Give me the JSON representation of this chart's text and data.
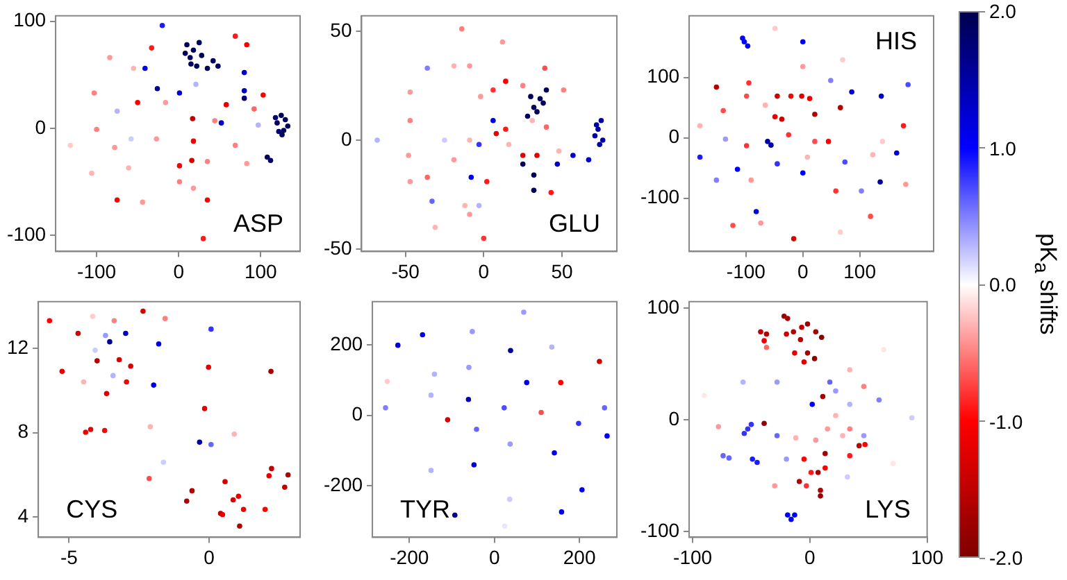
{
  "chart_data": [
    {
      "type": "scatter",
      "title": "ASP",
      "marker": "circle",
      "xlim": [
        -150,
        148
      ],
      "ylim": [
        -115,
        105
      ],
      "xticks": [
        -100,
        0,
        100
      ],
      "yticks": [
        -100,
        0,
        100
      ],
      "series": [
        {
          "x": [
            120,
            125,
            130,
            128,
            122,
            133,
            126,
            118,
            10,
            18,
            25,
            14,
            28,
            15,
            22,
            35,
            42,
            48,
            8,
            80,
            80,
            108,
            112,
            80,
            52,
            -41,
            -20,
            1,
            -26,
            -75,
            21,
            -58,
            97,
            17,
            35,
            30,
            83,
            69,
            -33,
            -75,
            58,
            103,
            -50,
            18,
            1,
            16,
            -84,
            -103,
            -100,
            -132,
            -106,
            -78,
            -44,
            18,
            69,
            83,
            92,
            44,
            -16,
            -27,
            -61,
            35,
            1,
            -55
          ],
          "values": [
            5,
            12,
            8,
            -2,
            -3,
            2,
            -6,
            10,
            78,
            73,
            80,
            66,
            68,
            60,
            58,
            56,
            63,
            58,
            70,
            52,
            35,
            -27,
            -30,
            28,
            5,
            56,
            96,
            33,
            37,
            16,
            41,
            -10,
            3,
            9,
            -67,
            -103,
            78,
            86,
            75,
            -67,
            22,
            31,
            24,
            -12,
            -35,
            -30,
            66,
            33,
            -1,
            -16,
            -42,
            -18,
            -69,
            -56,
            -16,
            -33,
            18,
            7,
            24,
            -10,
            -37,
            -31,
            -50,
            56
          ],
          "colors": [
            "#00005f",
            "#00005f",
            "#00005f",
            "#00005f",
            "#000071",
            "#00005f",
            "#00005f",
            "#000071",
            "#00005f",
            "#00005f",
            "#00005f",
            "#00005f",
            "#00005f",
            "#00005f",
            "#00005f",
            "#00005f",
            "#00005f",
            "#00005f",
            "#00005f",
            "#0000ca",
            "#0000b8",
            "#00005f",
            "#00005f",
            "#000071",
            "#0000ca",
            "#0000ff",
            "#1a1aff",
            "#0000db",
            "#000094",
            "#b3b3ff",
            "#b3b3ff",
            "#ccccff",
            "#b3b3ff",
            "#c00000",
            "#ff0000",
            "#ff1a1a",
            "#ff0000",
            "#ff1a1a",
            "#ff1a1a",
            "#ff0000",
            "#e60000",
            "#ff0000",
            "#ff0000",
            "#f20000",
            "#ff0000",
            "#d90000",
            "#ff9999",
            "#ff8080",
            "#ff8080",
            "#ffcccc",
            "#ffb3b3",
            "#ff9999",
            "#ff9999",
            "#ff9999",
            "#ff8080",
            "#ff9999",
            "#ff6666",
            "#ff8080",
            "#ff9999",
            "#ff9999",
            "#ffb3b3",
            "#ff8080",
            "#ff8080",
            "#ffb3b3"
          ]
        }
      ]
    },
    {
      "type": "scatter",
      "title": "GLU",
      "marker": "circle",
      "xlim": [
        -78,
        85
      ],
      "ylim": [
        -51,
        57
      ],
      "xticks": [
        -50,
        0,
        50
      ],
      "yticks": [
        -50,
        0,
        50
      ],
      "series": [
        {
          "x": [
            73,
            75,
            71,
            76,
            72,
            74,
            28,
            32,
            36,
            40,
            30,
            34,
            38,
            25,
            32,
            32,
            47,
            57,
            67,
            -8,
            -3,
            6,
            -33,
            -36,
            -3,
            -68,
            -25,
            25,
            34,
            8,
            14,
            14,
            2,
            0,
            43,
            39,
            6,
            -14,
            12,
            -47,
            -47,
            -47,
            -36,
            -19,
            -9,
            -2,
            -19,
            -9,
            -9,
            -12,
            -31,
            48,
            25,
            51,
            40,
            -48,
            16,
            31
          ],
          "values": [
            5,
            9,
            2,
            0,
            7,
            -2,
            11,
            15,
            19,
            23,
            20,
            13,
            17,
            -11,
            -23,
            -16,
            -11,
            -7,
            -9,
            -17,
            -2,
            9,
            -28,
            33,
            -30,
            0,
            0,
            -7,
            -7,
            3,
            5,
            27,
            -19,
            -45,
            -24,
            33,
            23,
            51,
            45,
            22,
            9,
            -19,
            -17,
            34,
            34,
            20,
            -9,
            0,
            -34,
            -30,
            -40,
            -5,
            25,
            23,
            6,
            -7,
            -2,
            9
          ],
          "colors": [
            "#0000a6",
            "#0000a6",
            "#0000a6",
            "#0000a6",
            "#0000a6",
            "#0000a6",
            "#00005f",
            "#00005f",
            "#00005f",
            "#00005f",
            "#00005f",
            "#00005f",
            "#00005f",
            "#00005f",
            "#00005f",
            "#00005f",
            "#0000ca",
            "#0000ca",
            "#0000ca",
            "#0000ff",
            "#3333ff",
            "#0000db",
            "#6666ff",
            "#8080ff",
            "#b3b3ff",
            "#b3b3ff",
            "#ccccff",
            "#e60000",
            "#e60000",
            "#f20000",
            "#ff1a1a",
            "#ff0000",
            "#ff1a1a",
            "#ff3333",
            "#ff1a1a",
            "#ff4d4d",
            "#ff3333",
            "#ff8080",
            "#ff9999",
            "#ff9999",
            "#ff8080",
            "#ff9999",
            "#ff6666",
            "#ffb3b3",
            "#ff9999",
            "#ff9999",
            "#ff9999",
            "#ffb3b3",
            "#ff9999",
            "#ffb3b3",
            "#ffb3b3",
            "#ffb3b3",
            "#ff8080",
            "#ff8080",
            "#ff6666",
            "#ff9999",
            "#ffb3b3",
            "#ffb3b3"
          ]
        }
      ]
    },
    {
      "type": "scatter",
      "title": "HIS",
      "marker": "circle",
      "xlim": [
        -200,
        230
      ],
      "ylim": [
        -188,
        202
      ],
      "xticks": [
        -100,
        0,
        100
      ],
      "yticks": [
        -100,
        0,
        100
      ],
      "clim": [
        -2,
        2
      ],
      "cticks": [
        {
          "value": 2,
          "label": "2.0"
        },
        {
          "value": 1,
          "label": "1.0"
        },
        {
          "value": 0,
          "label": "0.0"
        },
        {
          "value": -1,
          "label": "-1.0"
        },
        {
          "value": -2,
          "label": "-2.0"
        }
      ],
      "clabel": "pK$_{a}$ shifts",
      "series": [
        {
          "x": [
            -103,
            -97,
            -106,
            0,
            86,
            138,
            185,
            -62,
            -56,
            -181,
            -115,
            -82,
            -45,
            74,
            165,
            136,
            -152,
            -136,
            0,
            103,
            49,
            -152,
            -45,
            21,
            66,
            -16,
            -37,
            -49,
            -2,
            12,
            45,
            -21,
            -99,
            -95,
            -140,
            58,
            119,
            -123,
            177,
            -25,
            21,
            -99,
            -181,
            0,
            -49,
            -91,
            181,
            123,
            -74,
            70,
            8,
            140,
            66,
            -66
          ],
          "values": [
            159,
            152,
            165,
            159,
            76,
            69,
            88,
            -6,
            -12,
            -32,
            -52,
            -122,
            -43,
            -40,
            -25,
            -73,
            -70,
            -2,
            -58,
            -88,
            95,
            84,
            69,
            39,
            50,
            -167,
            31,
            35,
            69,
            65,
            -6,
            69,
            -13,
            91,
            45,
            -88,
            -130,
            -145,
            20,
            5,
            -6,
            69,
            20,
            118,
            181,
            -70,
            -77,
            -28,
            -141,
            129,
            -32,
            -6,
            -156,
            54
          ],
          "cvalues": [
            1.0,
            1.0,
            1.0,
            1.1,
            1.2,
            1.3,
            0.7,
            1.5,
            1.5,
            0.9,
            1.0,
            1.1,
            0.8,
            0.7,
            1.2,
            1.6,
            0.5,
            0.4,
            1.0,
            0.5,
            0.5,
            -1.6,
            -1.4,
            -1.6,
            -1.6,
            -1.3,
            -1.4,
            -1.2,
            -1.2,
            -1.1,
            -1.0,
            -1.0,
            -0.8,
            -0.8,
            -0.7,
            -0.8,
            -0.7,
            -0.7,
            -0.9,
            -0.8,
            -0.7,
            -0.7,
            -0.3,
            -0.4,
            -0.2,
            -0.4,
            -0.4,
            -0.3,
            -0.4,
            -0.2,
            -0.3,
            -0.2,
            -0.2,
            -0.3
          ]
        }
      ]
    },
    {
      "type": "scatter",
      "title": "CYS",
      "marker": "circle",
      "xlim": [
        -6.1,
        3.25
      ],
      "ylim": [
        3.05,
        14.2
      ],
      "xticks": [
        -5,
        0
      ],
      "yticks": [
        4,
        8,
        12
      ],
      "series": [
        {
          "x": [
            -5.7,
            -2.36,
            -4.16,
            -3.39,
            -1.57,
            0.07,
            -4.68,
            -3.7,
            -2.98,
            -3.55,
            -1.8,
            -4.07,
            -4.0,
            -3.21,
            -2.8,
            -5.25,
            -0.02,
            2.21,
            -3.43,
            -4.48,
            -2.95,
            -1.98,
            -3.66,
            -0.16,
            -4.23,
            -4.41,
            -3.73,
            -2.1,
            0.9,
            -0.34,
            0.07,
            -1.63,
            -2.14,
            2.23,
            2.14,
            2.82,
            2.7,
            0.57,
            -0.61,
            -0.8,
            0.86,
            1.05,
            1.23,
            2.0,
            0.41,
            0.48,
            1.09
          ],
          "values": [
            13.3,
            13.75,
            13.5,
            13.3,
            13.4,
            12.9,
            12.7,
            12.6,
            12.7,
            12.3,
            12.2,
            11.9,
            11.4,
            11.45,
            11.15,
            10.9,
            11.1,
            10.9,
            10.7,
            10.4,
            10.4,
            10.25,
            9.85,
            9.14,
            8.15,
            8.02,
            8.1,
            8.28,
            7.93,
            7.55,
            7.44,
            6.6,
            5.83,
            6.3,
            5.96,
            6.0,
            5.42,
            5.68,
            5.25,
            4.76,
            4.82,
            4.99,
            4.37,
            4.37,
            4.18,
            4.12,
            3.58
          ],
          "colors": [
            "#ff0000",
            "#d90000",
            "#ffcccc",
            "#ff8080",
            "#ff8080",
            "#3333ff",
            "#d90000",
            "#9999ff",
            "#0000ca",
            "#000094",
            "#0000ed",
            "#ccccff",
            "#b30000",
            "#d90000",
            "#d90000",
            "#e60000",
            "#e60000",
            "#a60000",
            "#b3b3ff",
            "#ffb3b3",
            "#ff0000",
            "#0000db",
            "#d90000",
            "#e60000",
            "#e60000",
            "#e60000",
            "#ff0000",
            "#ffb3b3",
            "#ffb3b3",
            "#0000a6",
            "#6666ff",
            "#ccccff",
            "#ff4d4d",
            "#c00000",
            "#e60000",
            "#b30000",
            "#c00000",
            "#d90000",
            "#b30000",
            "#b30000",
            "#d90000",
            "#e60000",
            "#f20000",
            "#ff0000",
            "#c00000",
            "#e60000",
            "#b30000"
          ]
        }
      ]
    },
    {
      "type": "scatter",
      "title": "TYR",
      "marker": "circle",
      "xlim": [
        -287,
        288
      ],
      "ylim": [
        -347,
        323
      ],
      "xticks": [
        -200,
        0,
        200
      ],
      "yticks": [
        -200,
        0,
        200
      ],
      "series": [
        {
          "x": [
            69,
            -169,
            -227,
            -52,
            38,
            135,
            247,
            -60,
            -141,
            -252,
            76,
            156,
            -149,
            -61,
            -256,
            23,
            110,
            -110,
            259,
            198,
            -42,
            265,
            37,
            141,
            -48,
            -149,
            206,
            36,
            158,
            -93,
            24
          ],
          "values": [
            293,
            229,
            199,
            238,
            184,
            194,
            153,
            136,
            117,
            96,
            93,
            93,
            57,
            45,
            21,
            21,
            8,
            -13,
            21,
            -23,
            -40,
            -59,
            -82,
            -107,
            -141,
            -157,
            -212,
            -239,
            -275,
            -284,
            -315
          ],
          "colors": [
            "#9999ff",
            "#0000ed",
            "#0000db",
            "#9999ff",
            "#000094",
            "#b3b3ff",
            "#cc0000",
            "#9999ff",
            "#b3b3ff",
            "#ffcccc",
            "#0000ed",
            "#ff0000",
            "#b3b3ff",
            "#0000b8",
            "#8080ff",
            "#4d4dff",
            "#ff4d4d",
            "#d90000",
            "#6666ff",
            "#3333ff",
            "#6666ff",
            "#0000ff",
            "#9999ff",
            "#0000ed",
            "#0000db",
            "#b3b3ff",
            "#0000ed",
            "#ccccff",
            "#0000ed",
            "#000094",
            "#e6e6ff"
          ]
        }
      ]
    },
    {
      "type": "scatter",
      "title": "LYS",
      "marker": "circle",
      "xlim": [
        -103,
        100
      ],
      "ylim": [
        -105,
        106
      ],
      "xticks": [
        -100,
        0,
        100
      ],
      "yticks": [
        -100,
        0,
        100
      ],
      "series": [
        {
          "x": [
            -22,
            -19,
            -42,
            -37,
            -20,
            -14,
            -7,
            -2,
            5,
            10,
            -8,
            -2,
            4,
            -5,
            -13,
            -39,
            -37,
            11,
            -39,
            13,
            7,
            -9,
            9,
            9,
            42,
            -5,
            1,
            13,
            47,
            34,
            -3,
            -53,
            -50,
            -56,
            -28,
            -74,
            -69,
            -49,
            -45,
            -16,
            -19,
            -13,
            2,
            17,
            -57,
            -28,
            -20,
            59,
            34,
            87,
            32,
            22,
            46,
            -78,
            46,
            34,
            63,
            15,
            28,
            5,
            -12,
            -30,
            71,
            -90,
            34,
            22
          ],
          "values": [
            93,
            91,
            79,
            77,
            77,
            79,
            83,
            86,
            79,
            74,
            72,
            60,
            55,
            52,
            60,
            71,
            65,
            21,
            -3,
            -30,
            -47,
            -55,
            -63,
            -68,
            -23,
            -35,
            -47,
            -43,
            -22,
            -32,
            -59,
            -8,
            -4,
            -12,
            -14,
            -32,
            -34,
            -35,
            -38,
            -89,
            -85,
            -85,
            14,
            34,
            34,
            34,
            -35,
            18,
            14,
            2,
            -51,
            26,
            -14,
            -6,
            30,
            45,
            63,
            -8,
            -14,
            -18,
            -16,
            -59,
            -39,
            22,
            -8,
            4
          ],
          "colors": [
            "#990000",
            "#a60000",
            "#c00000",
            "#b30000",
            "#cc0000",
            "#b30000",
            "#c00000",
            "#990000",
            "#a60000",
            "#8d0000",
            "#b30000",
            "#a60000",
            "#8d0000",
            "#d90000",
            "#e60000",
            "#f20000",
            "#ff6666",
            "#a60000",
            "#990000",
            "#a60000",
            "#a60000",
            "#b30000",
            "#b30000",
            "#990000",
            "#c00000",
            "#ff0000",
            "#ff1a1a",
            "#ff0000",
            "#ff0000",
            "#ff1a1a",
            "#ff3333",
            "#3333ff",
            "#3333ff",
            "#3333ff",
            "#6666ff",
            "#6666ff",
            "#6666ff",
            "#1a1aff",
            "#1a1aff",
            "#0000ff",
            "#0000ff",
            "#0000ff",
            "#0000ff",
            "#6666ff",
            "#b3b3ff",
            "#9999ff",
            "#9999ff",
            "#8080ff",
            "#b3b3ff",
            "#ccccff",
            "#ccccff",
            "#9999ff",
            "#9999ff",
            "#ff9999",
            "#ff8080",
            "#ffb3b3",
            "#ffe6e6",
            "#ff9999",
            "#ffb3b3",
            "#ff9999",
            "#ffb3b3",
            "#ff9999",
            "#ffe6e6",
            "#ffe6e6",
            "#ff8080",
            "#ffb3b3"
          ]
        }
      ]
    }
  ]
}
